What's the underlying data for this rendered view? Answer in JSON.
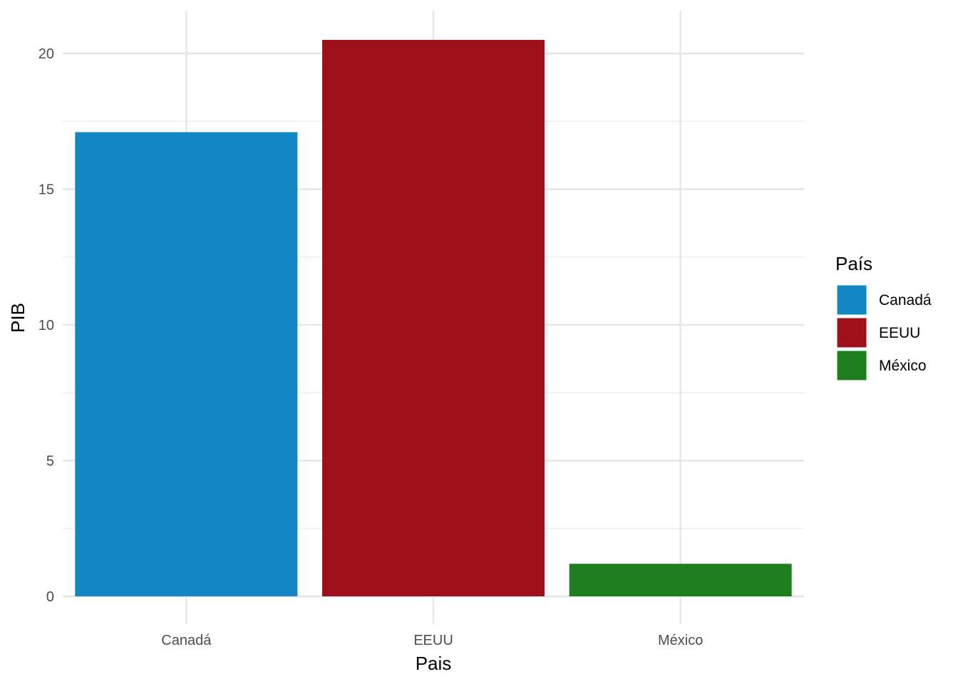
{
  "chart_data": {
    "type": "bar",
    "categories": [
      "Canadá",
      "EEUU",
      "México"
    ],
    "values": [
      17.1,
      20.5,
      1.2
    ],
    "colors": [
      "#1287C3",
      "#9E111B",
      "#1E7F1E"
    ],
    "title": "",
    "xlabel": "Pais",
    "ylabel": "PIB",
    "ylim": [
      0,
      21.6
    ],
    "yticks": [
      0,
      5,
      10,
      15,
      20
    ],
    "grid": true,
    "legend": {
      "title": "País",
      "placement": "right",
      "entries": [
        "Canadá",
        "EEUU",
        "México"
      ]
    }
  }
}
